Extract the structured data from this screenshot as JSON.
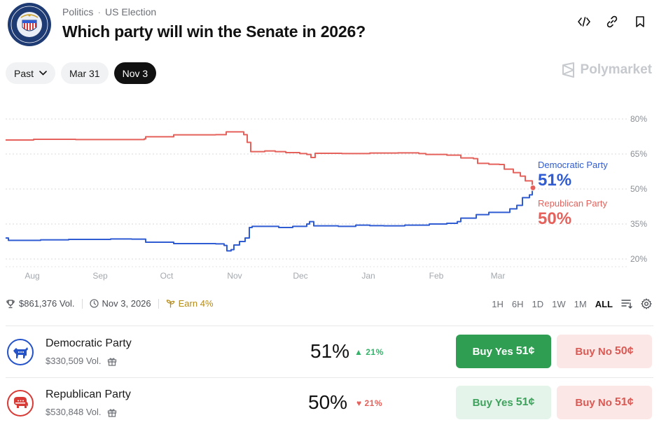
{
  "header": {
    "category": "Politics",
    "subcategory": "US Election",
    "title": "Which party will win the Senate in 2026?",
    "seal_text": "UNITED STATES SENATE"
  },
  "filters": {
    "past_label": "Past",
    "dates": [
      "Mar 31",
      "Nov 3"
    ],
    "active_date": "Nov 3"
  },
  "brand": {
    "name": "Polymarket"
  },
  "chart_data": {
    "type": "line",
    "x_labels": [
      "Aug",
      "Sep",
      "Oct",
      "Nov",
      "Dec",
      "Jan",
      "Feb",
      "Mar"
    ],
    "y_ticks": [
      "80%",
      "65%",
      "50%",
      "35%",
      "20%"
    ],
    "ylim": [
      20,
      80
    ],
    "series": [
      {
        "name": "Democratic Party",
        "color": "#2f5bd3",
        "final": "51%",
        "points": [
          [
            0,
            29
          ],
          [
            2,
            29
          ],
          [
            4,
            28
          ],
          [
            20,
            28
          ],
          [
            50,
            28.2
          ],
          [
            90,
            28.4
          ],
          [
            150,
            28.6
          ],
          [
            180,
            28.5
          ],
          [
            198,
            28.5
          ],
          [
            200,
            27.2
          ],
          [
            240,
            26.6
          ],
          [
            270,
            26.6
          ],
          [
            300,
            26.5
          ],
          [
            312,
            25.8
          ],
          [
            316,
            23.5
          ],
          [
            322,
            24
          ],
          [
            326,
            26
          ],
          [
            334,
            27.5
          ],
          [
            342,
            29
          ],
          [
            348,
            33.5
          ],
          [
            352,
            34
          ],
          [
            375,
            34
          ],
          [
            390,
            33.5
          ],
          [
            410,
            34
          ],
          [
            430,
            35
          ],
          [
            434,
            36
          ],
          [
            440,
            34.2
          ],
          [
            455,
            34.2
          ],
          [
            475,
            34
          ],
          [
            500,
            34.5
          ],
          [
            520,
            34.3
          ],
          [
            540,
            34.2
          ],
          [
            570,
            34.5
          ],
          [
            600,
            34.5
          ],
          [
            605,
            35
          ],
          [
            630,
            35.3
          ],
          [
            645,
            36
          ],
          [
            650,
            37.5
          ],
          [
            668,
            37.5
          ],
          [
            672,
            39
          ],
          [
            690,
            40
          ],
          [
            705,
            40
          ],
          [
            720,
            41.5
          ],
          [
            730,
            43
          ],
          [
            738,
            46.3
          ],
          [
            748,
            47.5
          ],
          [
            752,
            51
          ]
        ]
      },
      {
        "name": "Republican Party",
        "color": "#e5615b",
        "final": "50%",
        "points": [
          [
            0,
            71
          ],
          [
            40,
            71.3
          ],
          [
            100,
            71.2
          ],
          [
            150,
            71.2
          ],
          [
            198,
            71.5
          ],
          [
            200,
            72.4
          ],
          [
            240,
            73.2
          ],
          [
            300,
            73.3
          ],
          [
            315,
            74.5
          ],
          [
            325,
            74.5
          ],
          [
            340,
            73.3
          ],
          [
            345,
            70
          ],
          [
            350,
            66
          ],
          [
            370,
            66.3
          ],
          [
            385,
            66
          ],
          [
            400,
            65.6
          ],
          [
            420,
            65.2
          ],
          [
            430,
            64.8
          ],
          [
            436,
            63.5
          ],
          [
            442,
            65.3
          ],
          [
            480,
            65.2
          ],
          [
            520,
            65.4
          ],
          [
            560,
            65.5
          ],
          [
            590,
            65.2
          ],
          [
            600,
            64.8
          ],
          [
            630,
            64.5
          ],
          [
            650,
            63.3
          ],
          [
            668,
            63
          ],
          [
            674,
            61
          ],
          [
            690,
            60.6
          ],
          [
            705,
            60.5
          ],
          [
            712,
            58.5
          ],
          [
            725,
            57
          ],
          [
            735,
            55.5
          ],
          [
            742,
            53.5
          ],
          [
            748,
            53.5
          ],
          [
            752,
            50
          ]
        ]
      }
    ]
  },
  "legend": {
    "dem": {
      "name": "Democratic Party",
      "value": "51%"
    },
    "rep": {
      "name": "Republican Party",
      "value": "50%"
    }
  },
  "meta": {
    "volume": "$861,376 Vol.",
    "end_date": "Nov 3, 2026",
    "earn": "Earn 4%"
  },
  "ranges": [
    "1H",
    "6H",
    "1D",
    "1W",
    "1M",
    "ALL"
  ],
  "active_range": "ALL",
  "outcomes": [
    {
      "name": "Democratic Party",
      "volume": "$330,509 Vol.",
      "pct": "51%",
      "change": "21%",
      "direction": "up",
      "yes_label": "Buy Yes",
      "yes_price": "51¢",
      "no_label": "Buy No",
      "no_price": "50¢"
    },
    {
      "name": "Republican Party",
      "volume": "$530,848 Vol.",
      "pct": "50%",
      "change": "21%",
      "direction": "down",
      "yes_label": "Buy Yes",
      "yes_price": "51¢",
      "no_label": "Buy No",
      "no_price": "51¢"
    }
  ]
}
